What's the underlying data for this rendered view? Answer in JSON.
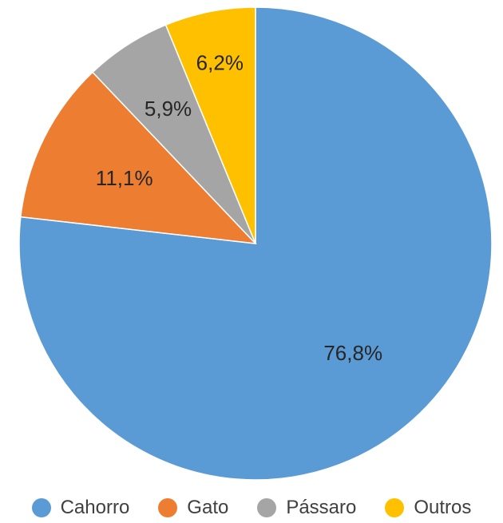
{
  "chart_data": {
    "type": "pie",
    "title": "",
    "categories": [
      "Cahorro",
      "Gato",
      "Pássaro",
      "Outros"
    ],
    "values": [
      76.8,
      11.1,
      5.9,
      6.2
    ],
    "value_labels": [
      "76,8%",
      "11,1%",
      "5,9%",
      "6,2%"
    ],
    "colors": [
      "#5B9BD5",
      "#ED7D31",
      "#A5A5A5",
      "#FFC000"
    ],
    "legend_position": "bottom",
    "start_angle": "12 o'clock",
    "direction": "clockwise"
  },
  "legend": {
    "items": [
      {
        "label": "Cahorro",
        "color": "#5B9BD5"
      },
      {
        "label": "Gato",
        "color": "#ED7D31"
      },
      {
        "label": "Pássaro",
        "color": "#A5A5A5"
      },
      {
        "label": "Outros",
        "color": "#FFC000"
      }
    ]
  }
}
